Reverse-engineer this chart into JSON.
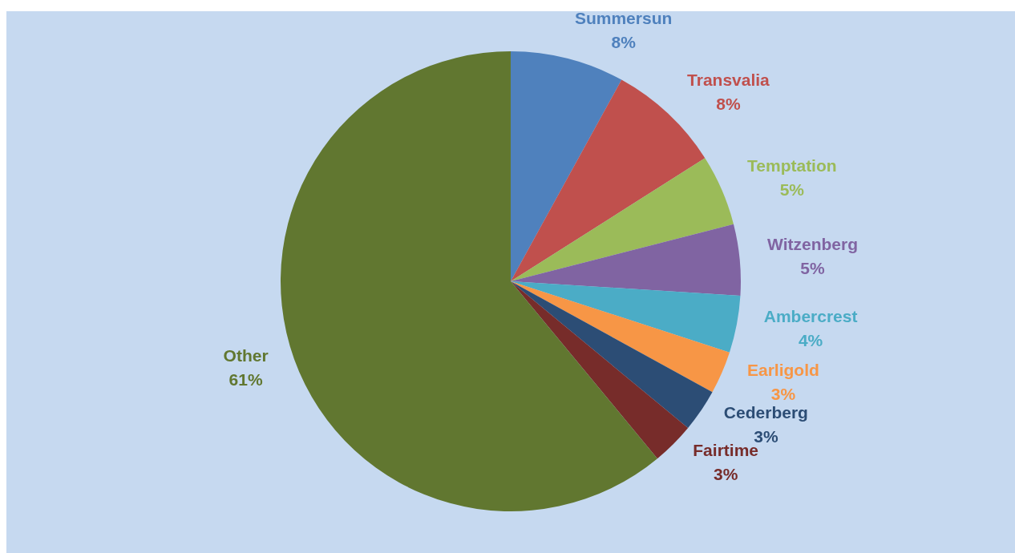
{
  "chart_data": {
    "type": "pie",
    "categories": [
      "Summersun",
      "Transvalia",
      "Temptation",
      "Witzenberg",
      "Ambercrest",
      "Earligold",
      "Cederberg",
      "Fairtime",
      "Other"
    ],
    "values": [
      8,
      8,
      5,
      5,
      4,
      3,
      3,
      3,
      61
    ],
    "value_labels": [
      "8%",
      "8%",
      "5%",
      "5%",
      "4%",
      "3%",
      "3%",
      "3%",
      "61%"
    ],
    "colors": [
      "#4f81bd",
      "#c0504d",
      "#9bbb59",
      "#8064a2",
      "#4bacc6",
      "#f79646",
      "#2c4d75",
      "#772c2a",
      "#617730"
    ],
    "legend": false
  }
}
